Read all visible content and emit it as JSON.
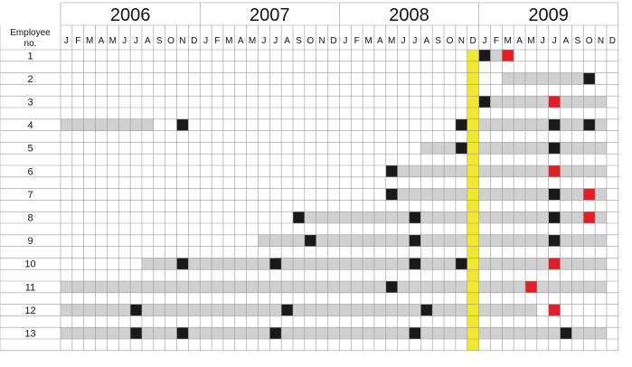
{
  "header": {
    "label": "Employee no.",
    "years": [
      "2006",
      "2007",
      "2008",
      "2009"
    ],
    "months": [
      "J",
      "F",
      "M",
      "A",
      "M",
      "J",
      "J",
      "A",
      "S",
      "O",
      "N",
      "D"
    ]
  },
  "highlight_month": 35,
  "rows": [
    {
      "label": "1",
      "gray": [
        [
          37,
          37
        ]
      ],
      "black": [
        36
      ],
      "red": [
        38
      ]
    },
    {
      "label": "2",
      "gray": [
        [
          38,
          44
        ]
      ],
      "black": [
        45
      ],
      "red": []
    },
    {
      "label": "3",
      "gray": [
        [
          37,
          46
        ]
      ],
      "black": [
        36
      ],
      "red": [
        42
      ]
    },
    {
      "label": "4",
      "gray": [
        [
          0,
          7
        ],
        [
          36,
          46
        ]
      ],
      "black": [
        10,
        34,
        42,
        45
      ],
      "red": []
    },
    {
      "label": "5",
      "gray": [
        [
          31,
          33
        ],
        [
          36,
          46
        ]
      ],
      "black": [
        34,
        42
      ],
      "red": []
    },
    {
      "label": "6",
      "gray": [
        [
          29,
          46
        ]
      ],
      "black": [
        28
      ],
      "red": [
        42
      ]
    },
    {
      "label": "7",
      "gray": [
        [
          29,
          46
        ]
      ],
      "black": [
        28,
        42
      ],
      "red": [
        45
      ]
    },
    {
      "label": "8",
      "gray": [
        [
          21,
          46
        ]
      ],
      "black": [
        20,
        30,
        42
      ],
      "red": [
        45
      ]
    },
    {
      "label": "9",
      "gray": [
        [
          17,
          46
        ]
      ],
      "black": [
        21,
        30,
        42
      ],
      "red": []
    },
    {
      "label": "10",
      "gray": [
        [
          7,
          46
        ]
      ],
      "black": [
        10,
        18,
        30,
        34
      ],
      "red": [
        42
      ]
    },
    {
      "label": "11",
      "gray": [
        [
          0,
          46
        ]
      ],
      "black": [
        28
      ],
      "red": [
        40
      ]
    },
    {
      "label": "12",
      "gray": [
        [
          0,
          40
        ]
      ],
      "black": [
        6,
        19,
        31
      ],
      "red": [
        42
      ]
    },
    {
      "label": "13",
      "gray": [
        [
          0,
          46
        ]
      ],
      "black": [
        6,
        10,
        18,
        30,
        43
      ],
      "red": []
    }
  ]
}
